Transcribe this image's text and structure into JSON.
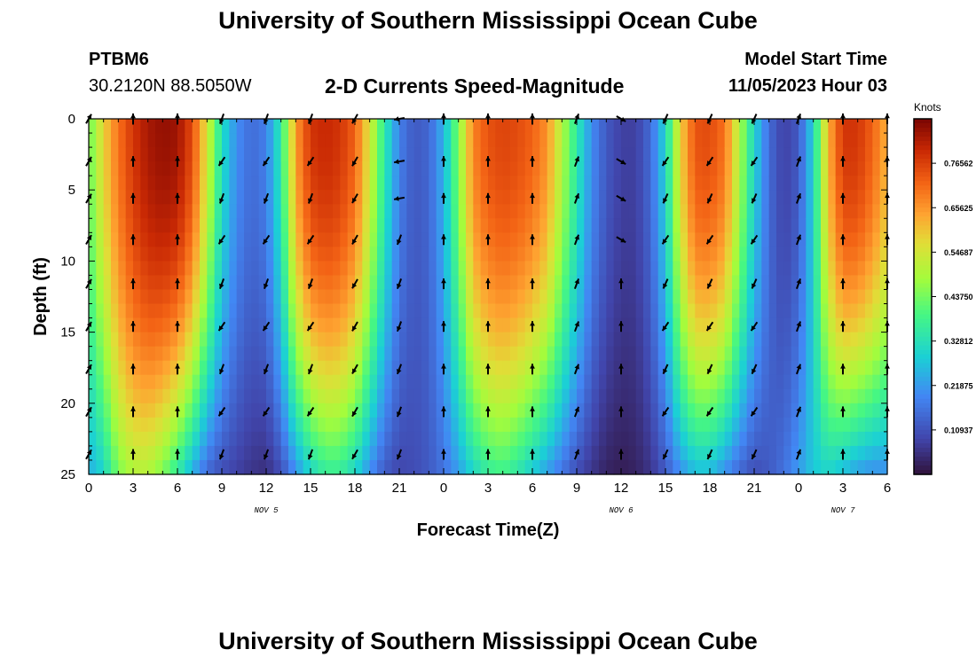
{
  "header": {
    "title": "University of Southern Mississippi Ocean Cube",
    "station": "PTBM6",
    "coords": "30.2120N  88.5050W",
    "subtitle": "2-D Currents Speed-Magnitude",
    "model_label": "Model Start Time",
    "model_time": "11/05/2023 Hour 03"
  },
  "footer": {
    "title": "University of Southern Mississippi Ocean Cube"
  },
  "chart_data": {
    "type": "heatmap",
    "title": "2-D Currents Speed-Magnitude",
    "xlabel": "Forecast Time(Z)",
    "ylabel": "Depth (ft)",
    "x_range_hours": [
      0,
      54
    ],
    "x_tick_hours": [
      0,
      3,
      6,
      9,
      12,
      15,
      18,
      21,
      24,
      27,
      30,
      33,
      36,
      39,
      42,
      45,
      48,
      51,
      54
    ],
    "x_tick_labels": [
      "0",
      "3",
      "6",
      "9",
      "12",
      "15",
      "18",
      "21",
      "0",
      "3",
      "6",
      "9",
      "12",
      "15",
      "18",
      "21",
      "0",
      "3",
      "6"
    ],
    "date_labels": [
      {
        "hour": 12,
        "text": "NOV 5"
      },
      {
        "hour": 36,
        "text": "NOV 6"
      },
      {
        "hour": 51,
        "text": "NOV 7"
      }
    ],
    "ylim": [
      0,
      25
    ],
    "y_ticks": [
      0,
      5,
      10,
      15,
      20,
      25
    ],
    "y_tick_labels": [
      "0",
      "5",
      "10",
      "15",
      "20",
      "25"
    ],
    "colorbar": {
      "label": "Knots",
      "range": [
        0,
        0.875
      ],
      "tick_values": [
        0.10937,
        0.21875,
        0.32812,
        0.4375,
        0.54687,
        0.65625,
        0.76562
      ],
      "tick_labels": [
        "0.10937",
        "0.21875",
        "0.32812",
        "0.43750",
        "0.54687",
        "0.65625",
        "0.76562"
      ]
    },
    "speed_profile_knots": {
      "hours": [
        0,
        1,
        2,
        3,
        4,
        5,
        6,
        7,
        8,
        9,
        10,
        11,
        12,
        13,
        14,
        15,
        16,
        17,
        18,
        19,
        20,
        21,
        22,
        23,
        24,
        25,
        26,
        27,
        28,
        29,
        30,
        31,
        32,
        33,
        34,
        35,
        36,
        37,
        38,
        39,
        40,
        41,
        42,
        43,
        44,
        45,
        46,
        47,
        48,
        49,
        50,
        51,
        52,
        53,
        54
      ],
      "surface": [
        0.42,
        0.58,
        0.7,
        0.78,
        0.83,
        0.85,
        0.84,
        0.75,
        0.55,
        0.32,
        0.2,
        0.15,
        0.18,
        0.35,
        0.65,
        0.78,
        0.8,
        0.78,
        0.72,
        0.55,
        0.35,
        0.18,
        0.12,
        0.14,
        0.25,
        0.45,
        0.68,
        0.74,
        0.76,
        0.75,
        0.72,
        0.66,
        0.5,
        0.35,
        0.2,
        0.12,
        0.08,
        0.08,
        0.15,
        0.3,
        0.58,
        0.74,
        0.75,
        0.7,
        0.5,
        0.3,
        0.15,
        0.08,
        0.12,
        0.3,
        0.62,
        0.78,
        0.78,
        0.72,
        0.62
      ],
      "bottom": [
        0.24,
        0.3,
        0.44,
        0.5,
        0.5,
        0.44,
        0.35,
        0.24,
        0.14,
        0.1,
        0.08,
        0.06,
        0.05,
        0.1,
        0.2,
        0.3,
        0.36,
        0.36,
        0.3,
        0.2,
        0.12,
        0.09,
        0.1,
        0.12,
        0.16,
        0.22,
        0.3,
        0.36,
        0.38,
        0.34,
        0.28,
        0.22,
        0.16,
        0.1,
        0.06,
        0.03,
        0.02,
        0.03,
        0.06,
        0.12,
        0.2,
        0.26,
        0.26,
        0.2,
        0.14,
        0.1,
        0.12,
        0.16,
        0.22,
        0.28,
        0.3,
        0.26,
        0.22,
        0.2,
        0.2
      ]
    },
    "vector_depths_ft": [
      0,
      3,
      5.6,
      8.5,
      11.6,
      14.6,
      17.6,
      20.6,
      23.6
    ],
    "vector_hours": [
      0,
      3,
      6,
      9,
      12,
      15,
      18,
      21,
      24,
      27,
      30,
      33,
      36,
      39,
      42,
      45,
      48,
      51,
      54
    ],
    "vector_direction_summary": [
      {
        "hours": "3-6",
        "dir": "north"
      },
      {
        "hours": "9-12",
        "dir": "south/southwest"
      },
      {
        "hours": "15-18",
        "dir": "south/southwest"
      },
      {
        "hours": "21",
        "dir": "west/southwest"
      },
      {
        "hours": "24-33",
        "dir": "north"
      },
      {
        "hours": "36",
        "dir": "east/southeast"
      },
      {
        "hours": "39-45",
        "dir": "south/southwest"
      },
      {
        "hours": "51-54",
        "dir": "north"
      }
    ]
  }
}
